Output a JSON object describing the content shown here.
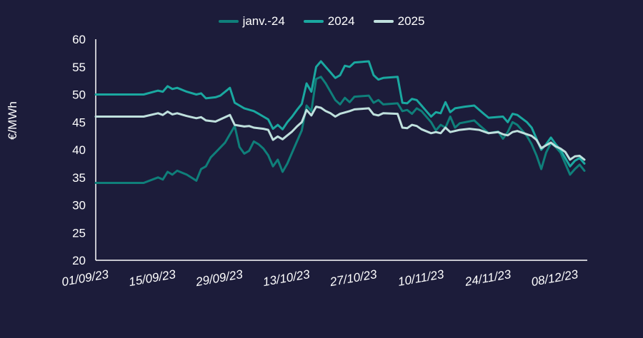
{
  "chart_data": {
    "type": "line",
    "title": "",
    "xlabel": "",
    "ylabel": "€/MWh",
    "ylim": [
      20,
      60
    ],
    "yticks": [
      20,
      25,
      30,
      35,
      40,
      45,
      50,
      55,
      60
    ],
    "xlim": [
      "01/09/23",
      "12/12/23"
    ],
    "xtick_labels": [
      "01/09/23",
      "15/09/23",
      "29/09/23",
      "13/10/23",
      "27/10/23",
      "10/11/23",
      "24/11/23",
      "08/12/23"
    ],
    "grid": false,
    "legend_position": "top-center",
    "series": [
      {
        "name": "janv.-24",
        "color": "#0f7f7a",
        "points": [
          [
            "01/09/23",
            34.0
          ],
          [
            "11/09/23",
            34.0
          ],
          [
            "14/09/23",
            35.0
          ],
          [
            "15/09/23",
            34.6
          ],
          [
            "16/09/23",
            36.0
          ],
          [
            "17/09/23",
            35.5
          ],
          [
            "18/09/23",
            36.2
          ],
          [
            "20/09/23",
            35.5
          ],
          [
            "22/09/23",
            34.4
          ],
          [
            "23/09/23",
            36.5
          ],
          [
            "24/09/23",
            37.0
          ],
          [
            "25/09/23",
            38.6
          ],
          [
            "26/09/23",
            39.5
          ],
          [
            "28/09/23",
            41.3
          ],
          [
            "30/09/23",
            44.3
          ],
          [
            "01/10/23",
            40.5
          ],
          [
            "02/10/23",
            39.3
          ],
          [
            "03/10/23",
            39.8
          ],
          [
            "04/10/23",
            41.5
          ],
          [
            "05/10/23",
            41.0
          ],
          [
            "06/10/23",
            40.2
          ],
          [
            "07/10/23",
            39.0
          ],
          [
            "08/10/23",
            37.0
          ],
          [
            "09/10/23",
            38.2
          ],
          [
            "10/10/23",
            36.0
          ],
          [
            "11/10/23",
            37.5
          ],
          [
            "12/10/23",
            39.5
          ],
          [
            "13/10/23",
            41.5
          ],
          [
            "14/10/23",
            43.5
          ],
          [
            "15/10/23",
            48.0
          ],
          [
            "16/10/23",
            47.0
          ],
          [
            "17/10/23",
            52.8
          ],
          [
            "18/10/23",
            53.2
          ],
          [
            "19/10/23",
            52.0
          ],
          [
            "20/10/23",
            50.5
          ],
          [
            "21/10/23",
            49.0
          ],
          [
            "22/10/23",
            48.2
          ],
          [
            "23/10/23",
            49.4
          ],
          [
            "24/10/23",
            48.6
          ],
          [
            "25/10/23",
            49.6
          ],
          [
            "28/10/23",
            49.8
          ],
          [
            "29/10/23",
            48.5
          ],
          [
            "30/10/23",
            49.0
          ],
          [
            "31/10/23",
            48.2
          ],
          [
            "03/11/23",
            48.4
          ],
          [
            "04/11/23",
            47.0
          ],
          [
            "05/11/23",
            47.2
          ],
          [
            "06/11/23",
            46.5
          ],
          [
            "07/11/23",
            47.5
          ],
          [
            "08/11/23",
            47.0
          ],
          [
            "10/11/23",
            45.0
          ],
          [
            "11/11/23",
            43.5
          ],
          [
            "12/11/23",
            44.5
          ],
          [
            "13/11/23",
            44.0
          ],
          [
            "14/11/23",
            46.0
          ],
          [
            "15/11/23",
            44.0
          ],
          [
            "16/11/23",
            44.8
          ],
          [
            "19/11/23",
            45.3
          ],
          [
            "20/11/23",
            44.5
          ],
          [
            "22/11/23",
            43.0
          ],
          [
            "24/11/23",
            43.3
          ],
          [
            "25/11/23",
            42.0
          ],
          [
            "26/11/23",
            43.2
          ],
          [
            "27/11/23",
            45.0
          ],
          [
            "28/11/23",
            44.5
          ],
          [
            "30/11/23",
            42.5
          ],
          [
            "01/12/23",
            41.0
          ],
          [
            "02/12/23",
            39.0
          ],
          [
            "03/12/23",
            36.5
          ],
          [
            "04/12/23",
            39.5
          ],
          [
            "05/12/23",
            41.2
          ],
          [
            "06/12/23",
            40.5
          ],
          [
            "07/12/23",
            39.5
          ],
          [
            "08/12/23",
            37.5
          ],
          [
            "09/12/23",
            35.5
          ],
          [
            "10/12/23",
            36.5
          ],
          [
            "11/12/23",
            37.3
          ],
          [
            "12/12/23",
            36.2
          ]
        ]
      },
      {
        "name": "2024",
        "color": "#1aa8a0",
        "points": [
          [
            "01/09/23",
            50.0
          ],
          [
            "11/09/23",
            50.0
          ],
          [
            "14/09/23",
            50.7
          ],
          [
            "15/09/23",
            50.5
          ],
          [
            "16/09/23",
            51.5
          ],
          [
            "17/09/23",
            51.0
          ],
          [
            "18/09/23",
            51.2
          ],
          [
            "20/09/23",
            50.5
          ],
          [
            "22/09/23",
            50.0
          ],
          [
            "23/09/23",
            50.2
          ],
          [
            "24/09/23",
            49.3
          ],
          [
            "26/09/23",
            49.5
          ],
          [
            "27/09/23",
            49.8
          ],
          [
            "29/09/23",
            51.2
          ],
          [
            "30/09/23",
            48.5
          ],
          [
            "01/10/23",
            48.0
          ],
          [
            "02/10/23",
            47.5
          ],
          [
            "04/10/23",
            47.0
          ],
          [
            "05/10/23",
            46.5
          ],
          [
            "06/10/23",
            46.0
          ],
          [
            "07/10/23",
            45.5
          ],
          [
            "08/10/23",
            43.8
          ],
          [
            "09/10/23",
            44.5
          ],
          [
            "10/10/23",
            43.7
          ],
          [
            "11/10/23",
            45.0
          ],
          [
            "12/10/23",
            46.0
          ],
          [
            "13/10/23",
            47.2
          ],
          [
            "14/10/23",
            48.3
          ],
          [
            "15/10/23",
            52.0
          ],
          [
            "16/10/23",
            50.5
          ],
          [
            "17/10/23",
            55.0
          ],
          [
            "18/10/23",
            56.0
          ],
          [
            "19/10/23",
            55.0
          ],
          [
            "20/10/23",
            54.0
          ],
          [
            "21/10/23",
            53.0
          ],
          [
            "22/10/23",
            53.5
          ],
          [
            "23/10/23",
            55.2
          ],
          [
            "24/10/23",
            55.0
          ],
          [
            "25/10/23",
            55.8
          ],
          [
            "28/10/23",
            56.0
          ],
          [
            "29/10/23",
            53.5
          ],
          [
            "30/10/23",
            52.7
          ],
          [
            "31/10/23",
            53.0
          ],
          [
            "03/11/23",
            53.2
          ],
          [
            "04/11/23",
            48.5
          ],
          [
            "05/11/23",
            48.4
          ],
          [
            "06/11/23",
            49.2
          ],
          [
            "07/11/23",
            49.0
          ],
          [
            "08/11/23",
            48.0
          ],
          [
            "09/11/23",
            47.0
          ],
          [
            "10/11/23",
            46.0
          ],
          [
            "11/11/23",
            46.8
          ],
          [
            "12/11/23",
            46.6
          ],
          [
            "13/11/23",
            48.6
          ],
          [
            "14/11/23",
            46.8
          ],
          [
            "15/11/23",
            47.5
          ],
          [
            "17/11/23",
            47.8
          ],
          [
            "19/11/23",
            48.0
          ],
          [
            "21/11/23",
            46.5
          ],
          [
            "22/11/23",
            45.8
          ],
          [
            "25/11/23",
            46.0
          ],
          [
            "26/11/23",
            45.0
          ],
          [
            "27/11/23",
            46.5
          ],
          [
            "28/11/23",
            46.3
          ],
          [
            "30/11/23",
            45.0
          ],
          [
            "01/12/23",
            44.0
          ],
          [
            "02/12/23",
            42.0
          ],
          [
            "03/12/23",
            40.0
          ],
          [
            "04/12/23",
            41.0
          ],
          [
            "05/12/23",
            42.2
          ],
          [
            "06/12/23",
            41.0
          ],
          [
            "07/12/23",
            40.0
          ],
          [
            "08/12/23",
            38.5
          ],
          [
            "09/12/23",
            37.0
          ],
          [
            "10/12/23",
            38.0
          ],
          [
            "11/12/23",
            38.5
          ],
          [
            "12/12/23",
            37.5
          ]
        ]
      },
      {
        "name": "2025",
        "color": "#bfe0dd",
        "points": [
          [
            "01/09/23",
            46.0
          ],
          [
            "11/09/23",
            46.0
          ],
          [
            "14/09/23",
            46.6
          ],
          [
            "15/09/23",
            46.3
          ],
          [
            "16/09/23",
            46.9
          ],
          [
            "17/09/23",
            46.4
          ],
          [
            "18/09/23",
            46.6
          ],
          [
            "20/09/23",
            46.1
          ],
          [
            "22/09/23",
            45.7
          ],
          [
            "23/09/23",
            45.9
          ],
          [
            "24/09/23",
            45.3
          ],
          [
            "26/09/23",
            45.1
          ],
          [
            "29/09/23",
            46.3
          ],
          [
            "30/09/23",
            44.5
          ],
          [
            "02/10/23",
            44.2
          ],
          [
            "03/10/23",
            44.3
          ],
          [
            "04/10/23",
            44.0
          ],
          [
            "06/10/23",
            43.8
          ],
          [
            "07/10/23",
            43.6
          ],
          [
            "08/10/23",
            41.8
          ],
          [
            "09/10/23",
            42.4
          ],
          [
            "10/10/23",
            41.9
          ],
          [
            "11/10/23",
            42.6
          ],
          [
            "12/10/23",
            43.3
          ],
          [
            "13/10/23",
            44.2
          ],
          [
            "14/10/23",
            45.0
          ],
          [
            "15/10/23",
            47.2
          ],
          [
            "16/10/23",
            46.2
          ],
          [
            "17/10/23",
            47.8
          ],
          [
            "18/10/23",
            47.6
          ],
          [
            "19/10/23",
            47.0
          ],
          [
            "20/10/23",
            46.6
          ],
          [
            "21/10/23",
            46.0
          ],
          [
            "22/10/23",
            46.5
          ],
          [
            "24/10/23",
            47.0
          ],
          [
            "25/10/23",
            47.3
          ],
          [
            "28/10/23",
            47.5
          ],
          [
            "29/10/23",
            46.4
          ],
          [
            "30/10/23",
            46.2
          ],
          [
            "31/10/23",
            46.6
          ],
          [
            "03/11/23",
            46.5
          ],
          [
            "04/11/23",
            44.0
          ],
          [
            "05/11/23",
            43.9
          ],
          [
            "06/11/23",
            44.5
          ],
          [
            "07/11/23",
            44.3
          ],
          [
            "08/11/23",
            43.7
          ],
          [
            "10/11/23",
            43.0
          ],
          [
            "11/11/23",
            43.2
          ],
          [
            "12/11/23",
            43.0
          ],
          [
            "13/11/23",
            44.0
          ],
          [
            "14/11/23",
            43.2
          ],
          [
            "16/11/23",
            43.6
          ],
          [
            "18/11/23",
            43.8
          ],
          [
            "20/11/23",
            43.6
          ],
          [
            "22/11/23",
            43.0
          ],
          [
            "24/11/23",
            43.2
          ],
          [
            "25/11/23",
            42.8
          ],
          [
            "26/11/23",
            42.6
          ],
          [
            "27/11/23",
            43.2
          ],
          [
            "28/11/23",
            43.4
          ],
          [
            "30/11/23",
            42.8
          ],
          [
            "01/12/23",
            42.5
          ],
          [
            "02/12/23",
            41.8
          ],
          [
            "03/12/23",
            40.3
          ],
          [
            "04/12/23",
            40.8
          ],
          [
            "05/12/23",
            41.3
          ],
          [
            "06/12/23",
            40.6
          ],
          [
            "07/12/23",
            40.2
          ],
          [
            "08/12/23",
            39.6
          ],
          [
            "09/12/23",
            38.2
          ],
          [
            "10/12/23",
            38.8
          ],
          [
            "11/12/23",
            38.9
          ],
          [
            "12/12/23",
            38.2
          ]
        ]
      }
    ]
  }
}
